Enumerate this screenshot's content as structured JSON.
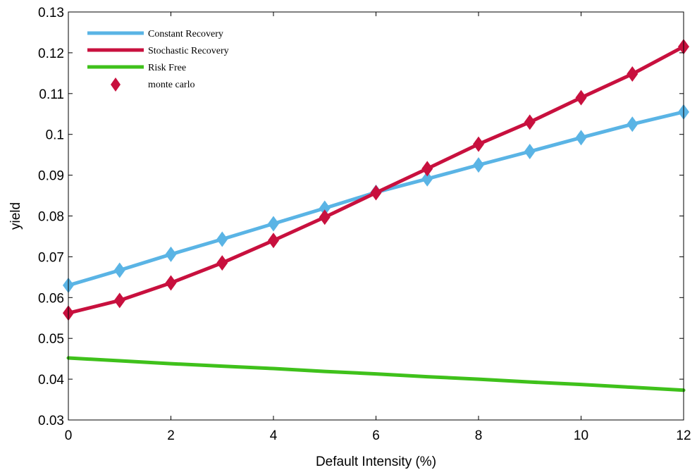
{
  "chart_data": {
    "type": "line",
    "title": "",
    "xlabel": "Default Intensity (%)",
    "ylabel": "yield",
    "xlim": [
      0,
      12
    ],
    "ylim": [
      0.03,
      0.13
    ],
    "xticks": [
      "0",
      "2",
      "4",
      "6",
      "8",
      "10",
      "12"
    ],
    "yticks": [
      "0.03",
      "0.04",
      "0.05",
      "0.06",
      "0.07",
      "0.08",
      "0.09",
      "0.1",
      "0.11",
      "0.12",
      "0.13"
    ],
    "grid": false,
    "legend_position": "top-left",
    "x": [
      0,
      1,
      2,
      3,
      4,
      5,
      6,
      7,
      8,
      9,
      10,
      11,
      12
    ],
    "series": [
      {
        "name": "Constant Recovery",
        "color": "#5AB4E5",
        "marker": "diamond",
        "values": [
          0.063,
          0.0667,
          0.0706,
          0.0743,
          0.0781,
          0.0819,
          0.0858,
          0.0891,
          0.0925,
          0.0958,
          0.0992,
          0.1025,
          0.1055
        ]
      },
      {
        "name": "Stochastic Recovery",
        "color": "#C8103E",
        "marker": "diamond",
        "values": [
          0.0562,
          0.0593,
          0.0636,
          0.0685,
          0.074,
          0.0797,
          0.0857,
          0.0916,
          0.0976,
          0.103,
          0.109,
          0.1148,
          0.1215
        ]
      },
      {
        "name": "Risk Free",
        "color": "#3FC11B",
        "marker": "none",
        "values": [
          0.0452,
          0.0445,
          0.0438,
          0.0432,
          0.0426,
          0.0419,
          0.0413,
          0.0406,
          0.04,
          0.0393,
          0.0387,
          0.038,
          0.0373
        ]
      }
    ],
    "legend": [
      {
        "label": "Constant Recovery",
        "color": "#5AB4E5",
        "symbol": "line"
      },
      {
        "label": "Stochastic Recovery",
        "color": "#C8103E",
        "symbol": "line"
      },
      {
        "label": "Risk Free",
        "color": "#3FC11B",
        "symbol": "line"
      },
      {
        "label": "monte carlo",
        "color": "#C8103E",
        "symbol": "diamond"
      }
    ]
  }
}
